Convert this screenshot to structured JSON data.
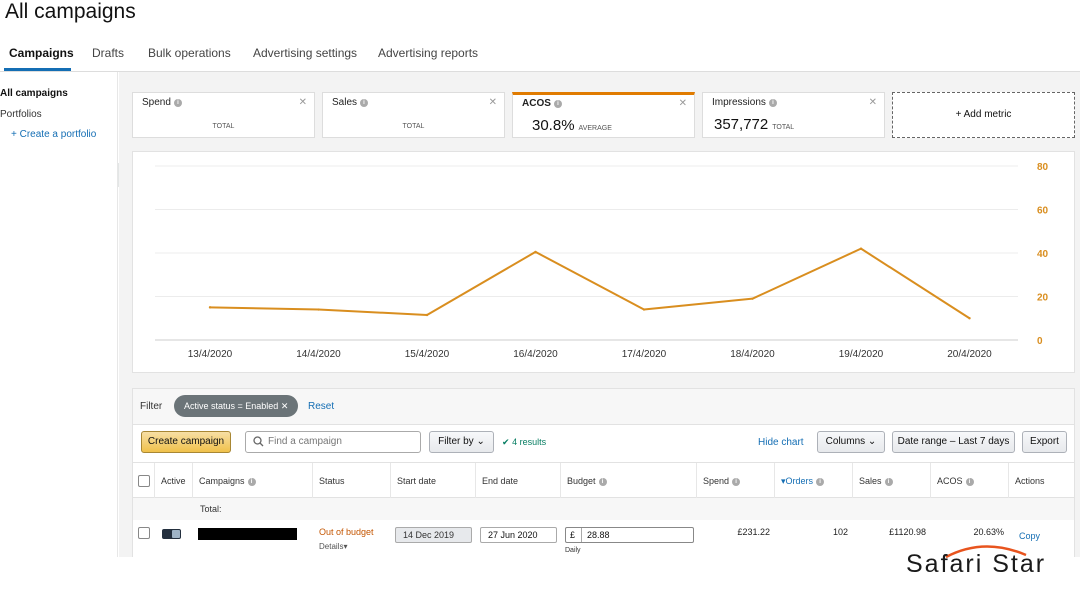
{
  "page": {
    "title": "All campaigns"
  },
  "nav": {
    "tabs": [
      {
        "label": "Campaigns",
        "active": true
      },
      {
        "label": "Drafts"
      },
      {
        "label": "Bulk operations"
      },
      {
        "label": "Advertising settings"
      },
      {
        "label": "Advertising reports"
      }
    ]
  },
  "sidebar": {
    "items": [
      "All campaigns",
      "Portfolios",
      "+ Create a portfolio"
    ],
    "collapse_label": "«"
  },
  "metrics": [
    {
      "name": "Spend",
      "value": "",
      "caption": "TOTAL"
    },
    {
      "name": "Sales",
      "value": "",
      "caption": "TOTAL"
    },
    {
      "name": "ACOS",
      "value": "30.8%",
      "caption": "AVERAGE",
      "active": true,
      "color": "#e07b00"
    },
    {
      "name": "Impressions",
      "value": "357,772",
      "caption": "TOTAL"
    }
  ],
  "add_metric_label": "+ Add metric",
  "chart_data": {
    "type": "line",
    "x": [
      "13/4/2020",
      "14/4/2020",
      "15/4/2020",
      "16/4/2020",
      "17/4/2020",
      "18/4/2020",
      "19/4/2020",
      "20/4/2020"
    ],
    "series": [
      {
        "values": [
          15,
          14,
          11.5,
          40.5,
          14,
          19,
          42,
          10
        ],
        "color": "#d98e1f"
      }
    ],
    "y_ticks": [
      0,
      20,
      40,
      60,
      80
    ],
    "ylim": [
      0,
      80
    ],
    "y_axis_side": "right",
    "grid": true
  },
  "filter": {
    "label": "Filter",
    "pill": "Active status = Enabled",
    "reset": "Reset"
  },
  "toolbar": {
    "create": "Create campaign",
    "search_placeholder": "Find a campaign",
    "filter_by": "Filter by",
    "results": "4 results",
    "hide_chart": "Hide chart",
    "columns": "Columns",
    "date_range": "Date range – Last 7 days",
    "export": "Export"
  },
  "table": {
    "headers": [
      "Active",
      "Campaigns",
      "Status",
      "Start date",
      "End date",
      "Budget",
      "Spend",
      "Orders",
      "Sales",
      "ACOS",
      "Actions"
    ],
    "total_label": "Total:",
    "rows": [
      {
        "status": "Out of budget",
        "details": "Details",
        "start_date": "14 Dec 2019",
        "end_date": "27 Jun 2020",
        "budget_currency": "£",
        "budget": "28.88",
        "budget_period": "Daily",
        "spend": "£231.22",
        "orders": "102",
        "sales": "£1120.98",
        "acos": "20.63%",
        "action": "Copy"
      }
    ]
  },
  "watermark": {
    "text": "Safari Star",
    "color": "#e8541e"
  }
}
